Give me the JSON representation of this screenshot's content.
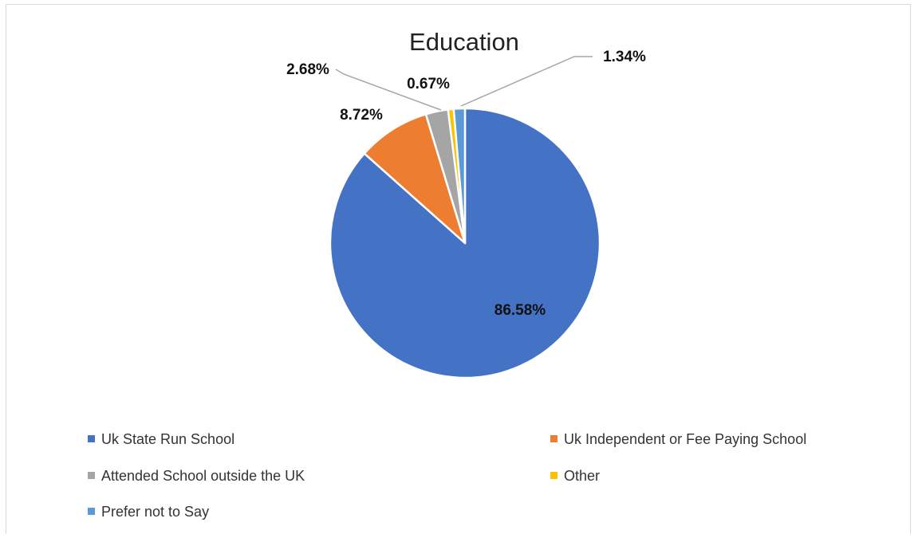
{
  "chart_data": {
    "type": "pie",
    "title": "Education",
    "categories": [
      "Uk State Run School",
      "Uk Independent or Fee Paying School",
      "Attended School outside the UK",
      "Other",
      "Prefer not to Say"
    ],
    "values": [
      86.58,
      8.72,
      2.68,
      0.67,
      1.34
    ],
    "data_labels": [
      "86.58%",
      "8.72%",
      "2.68%",
      "0.67%",
      "1.34%"
    ],
    "colors": [
      "#4472c4",
      "#ed7d31",
      "#a5a5a5",
      "#ffc000",
      "#5b9bd5"
    ],
    "legend_position": "bottom",
    "slice_order": "clockwise from top, last category ends at 12 o'clock"
  }
}
